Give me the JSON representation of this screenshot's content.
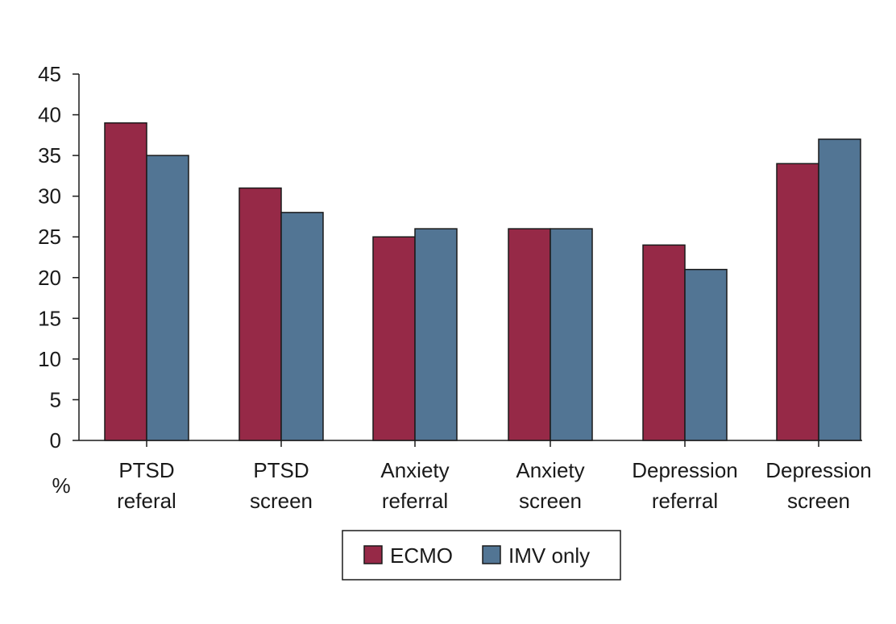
{
  "chart_data": {
    "type": "bar",
    "title": "",
    "xlabel": "",
    "ylabel": "%",
    "ylim": [
      0,
      45
    ],
    "yticks": [
      0,
      5,
      10,
      15,
      20,
      25,
      30,
      35,
      40,
      45
    ],
    "grid": false,
    "legend_position": "bottom-center",
    "categories": [
      [
        "PTSD",
        "referal"
      ],
      [
        "PTSD",
        "screen"
      ],
      [
        "Anxiety",
        "referral"
      ],
      [
        "Anxiety",
        "screen"
      ],
      [
        "Depression",
        "referral"
      ],
      [
        "Depression",
        "screen"
      ]
    ],
    "series": [
      {
        "name": "ECMO",
        "color": "#962947",
        "values": [
          39,
          31,
          25,
          26,
          24,
          34
        ]
      },
      {
        "name": "IMV only",
        "color": "#527594",
        "values": [
          35,
          28,
          26,
          26,
          21,
          37
        ]
      }
    ]
  }
}
